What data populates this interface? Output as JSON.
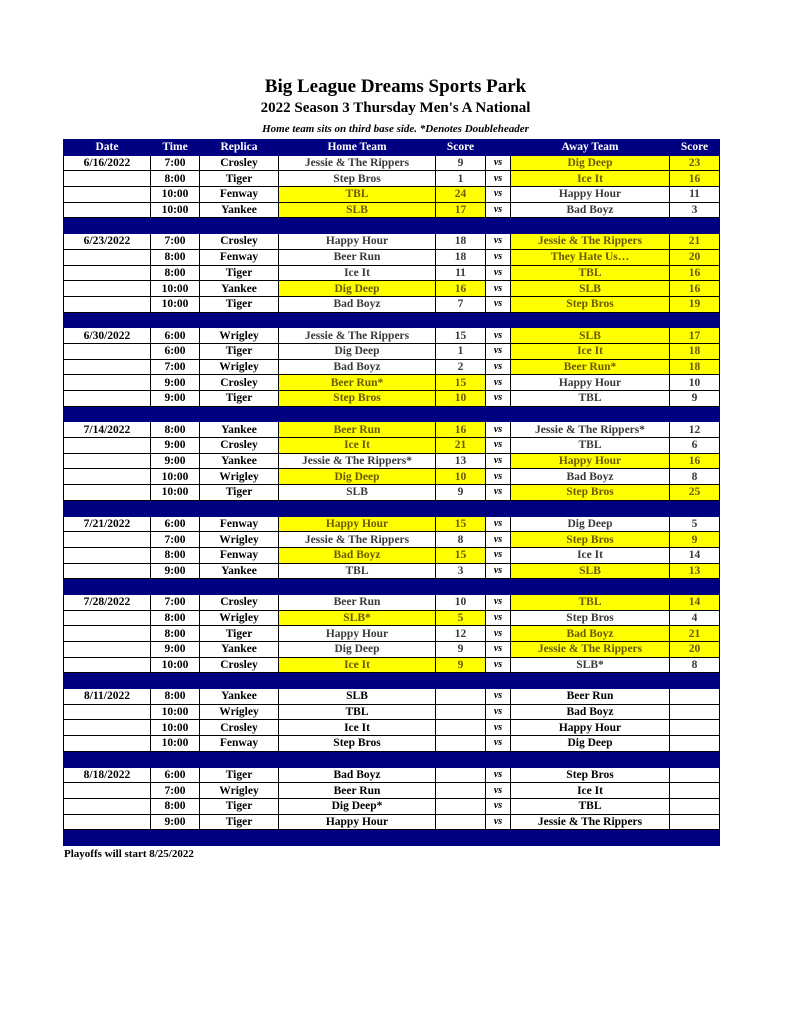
{
  "title": "Big League Dreams Sports Park",
  "subtitle": "2022 Season 3 Thursday Men's A National",
  "note": "Home team sits on third base side.  *Denotes Doubleheader",
  "headers": [
    "Date",
    "Time",
    "Replica",
    "Home Team",
    "Score",
    "",
    "Away Team",
    "Score"
  ],
  "vs_label": "vs",
  "colors": {
    "header": "#000080",
    "winner": "#ffff00"
  },
  "weeks": [
    {
      "date": "6/16/2022",
      "games": [
        {
          "time": "7:00",
          "replica": "Crosley",
          "home": "Jessie & The Rippers",
          "home_score": "9",
          "away": "Dig Deep",
          "away_score": "23",
          "winner": "away"
        },
        {
          "time": "8:00",
          "replica": "Tiger",
          "home": "Step Bros",
          "home_score": "1",
          "away": "Ice It",
          "away_score": "16",
          "winner": "away"
        },
        {
          "time": "10:00",
          "replica": "Fenway",
          "home": "TBL",
          "home_score": "24",
          "away": "Happy Hour",
          "away_score": "11",
          "winner": "home"
        },
        {
          "time": "10:00",
          "replica": "Yankee",
          "home": "SLB",
          "home_score": "17",
          "away": "Bad Boyz",
          "away_score": "3",
          "winner": "home"
        }
      ]
    },
    {
      "date": "6/23/2022",
      "games": [
        {
          "time": "7:00",
          "replica": "Crosley",
          "home": "Happy Hour",
          "home_score": "18",
          "away": "Jessie & The Rippers",
          "away_score": "21",
          "winner": "away"
        },
        {
          "time": "8:00",
          "replica": "Fenway",
          "home": "Beer Run",
          "home_score": "18",
          "away": "They Hate Us…",
          "away_score": "20",
          "winner": "away"
        },
        {
          "time": "8:00",
          "replica": "Tiger",
          "home": "Ice It",
          "home_score": "11",
          "away": "TBL",
          "away_score": "16",
          "winner": "away"
        },
        {
          "time": "10:00",
          "replica": "Yankee",
          "home": "Dig Deep",
          "home_score": "16",
          "away": "SLB",
          "away_score": "16",
          "winner": "both"
        },
        {
          "time": "10:00",
          "replica": "Tiger",
          "home": "Bad Boyz",
          "home_score": "7",
          "away": "Step Bros",
          "away_score": "19",
          "winner": "away"
        }
      ]
    },
    {
      "date": "6/30/2022",
      "games": [
        {
          "time": "6:00",
          "replica": "Wrigley",
          "home": "Jessie & The Rippers",
          "home_score": "15",
          "away": "SLB",
          "away_score": "17",
          "winner": "away"
        },
        {
          "time": "6:00",
          "replica": "Tiger",
          "home": "Dig Deep",
          "home_score": "1",
          "away": "Ice It",
          "away_score": "18",
          "winner": "away"
        },
        {
          "time": "7:00",
          "replica": "Wrigley",
          "home": "Bad Boyz",
          "home_score": "2",
          "away": "Beer Run*",
          "away_score": "18",
          "winner": "away"
        },
        {
          "time": "9:00",
          "replica": "Crosley",
          "home": "Beer Run*",
          "home_score": "15",
          "away": "Happy Hour",
          "away_score": "10",
          "winner": "home"
        },
        {
          "time": "9:00",
          "replica": "Tiger",
          "home": "Step Bros",
          "home_score": "10",
          "away": "TBL",
          "away_score": "9",
          "winner": "home"
        }
      ]
    },
    {
      "date": "7/14/2022",
      "games": [
        {
          "time": "8:00",
          "replica": "Yankee",
          "home": "Beer Run",
          "home_score": "16",
          "away": "Jessie & The Rippers*",
          "away_score": "12",
          "winner": "home"
        },
        {
          "time": "9:00",
          "replica": "Crosley",
          "home": "Ice It",
          "home_score": "21",
          "away": "TBL",
          "away_score": "6",
          "winner": "home"
        },
        {
          "time": "9:00",
          "replica": "Yankee",
          "home": "Jessie & The Rippers*",
          "home_score": "13",
          "away": "Happy Hour",
          "away_score": "16",
          "winner": "away"
        },
        {
          "time": "10:00",
          "replica": "Wrigley",
          "home": "Dig Deep",
          "home_score": "10",
          "away": "Bad Boyz",
          "away_score": "8",
          "winner": "home"
        },
        {
          "time": "10:00",
          "replica": "Tiger",
          "home": "SLB",
          "home_score": "9",
          "away": "Step Bros",
          "away_score": "25",
          "winner": "away"
        }
      ]
    },
    {
      "date": "7/21/2022",
      "games": [
        {
          "time": "6:00",
          "replica": "Fenway",
          "home": "Happy Hour",
          "home_score": "15",
          "away": "Dig Deep",
          "away_score": "5",
          "winner": "home"
        },
        {
          "time": "7:00",
          "replica": "Wrigley",
          "home": "Jessie & The Rippers",
          "home_score": "8",
          "away": "Step Bros",
          "away_score": "9",
          "winner": "away"
        },
        {
          "time": "8:00",
          "replica": "Fenway",
          "home": "Bad Boyz",
          "home_score": "15",
          "away": "Ice It",
          "away_score": "14",
          "winner": "home"
        },
        {
          "time": "9:00",
          "replica": "Yankee",
          "home": "TBL",
          "home_score": "3",
          "away": "SLB",
          "away_score": "13",
          "winner": "away"
        }
      ]
    },
    {
      "date": "7/28/2022",
      "games": [
        {
          "time": "7:00",
          "replica": "Crosley",
          "home": "Beer Run",
          "home_score": "10",
          "away": "TBL",
          "away_score": "14",
          "winner": "away"
        },
        {
          "time": "8:00",
          "replica": "Wrigley",
          "home": "SLB*",
          "home_score": "5",
          "away": "Step Bros",
          "away_score": "4",
          "winner": "home"
        },
        {
          "time": "8:00",
          "replica": "Tiger",
          "home": "Happy Hour",
          "home_score": "12",
          "away": "Bad Boyz",
          "away_score": "21",
          "winner": "away"
        },
        {
          "time": "9:00",
          "replica": "Yankee",
          "home": "Dig Deep",
          "home_score": "9",
          "away": "Jessie & The Rippers",
          "away_score": "20",
          "winner": "away"
        },
        {
          "time": "10:00",
          "replica": "Crosley",
          "home": "Ice It",
          "home_score": "9",
          "away": "SLB*",
          "away_score": "8",
          "winner": "home"
        }
      ]
    },
    {
      "date": "8/11/2022",
      "games": [
        {
          "time": "8:00",
          "replica": "Yankee",
          "home": "SLB",
          "home_score": "",
          "away": "Beer Run",
          "away_score": "",
          "winner": null
        },
        {
          "time": "10:00",
          "replica": "Wrigley",
          "home": "TBL",
          "home_score": "",
          "away": "Bad Boyz",
          "away_score": "",
          "winner": null
        },
        {
          "time": "10:00",
          "replica": "Crosley",
          "home": "Ice It",
          "home_score": "",
          "away": "Happy Hour",
          "away_score": "",
          "winner": null
        },
        {
          "time": "10:00",
          "replica": "Fenway",
          "home": "Step Bros",
          "home_score": "",
          "away": "Dig Deep",
          "away_score": "",
          "winner": null
        }
      ]
    },
    {
      "date": "8/18/2022",
      "games": [
        {
          "time": "6:00",
          "replica": "Tiger",
          "home": "Bad Boyz",
          "home_score": "",
          "away": "Step Bros",
          "away_score": "",
          "winner": null
        },
        {
          "time": "7:00",
          "replica": "Wrigley",
          "home": "Beer Run",
          "home_score": "",
          "away": "Ice It",
          "away_score": "",
          "winner": null
        },
        {
          "time": "8:00",
          "replica": "Tiger",
          "home": "Dig Deep*",
          "home_score": "",
          "away": "TBL",
          "away_score": "",
          "winner": null
        },
        {
          "time": "9:00",
          "replica": "Tiger",
          "home": "Happy Hour",
          "home_score": "",
          "away": "Jessie & The Rippers",
          "away_score": "",
          "winner": null
        }
      ]
    }
  ],
  "footer": "Playoffs will start 8/25/2022"
}
